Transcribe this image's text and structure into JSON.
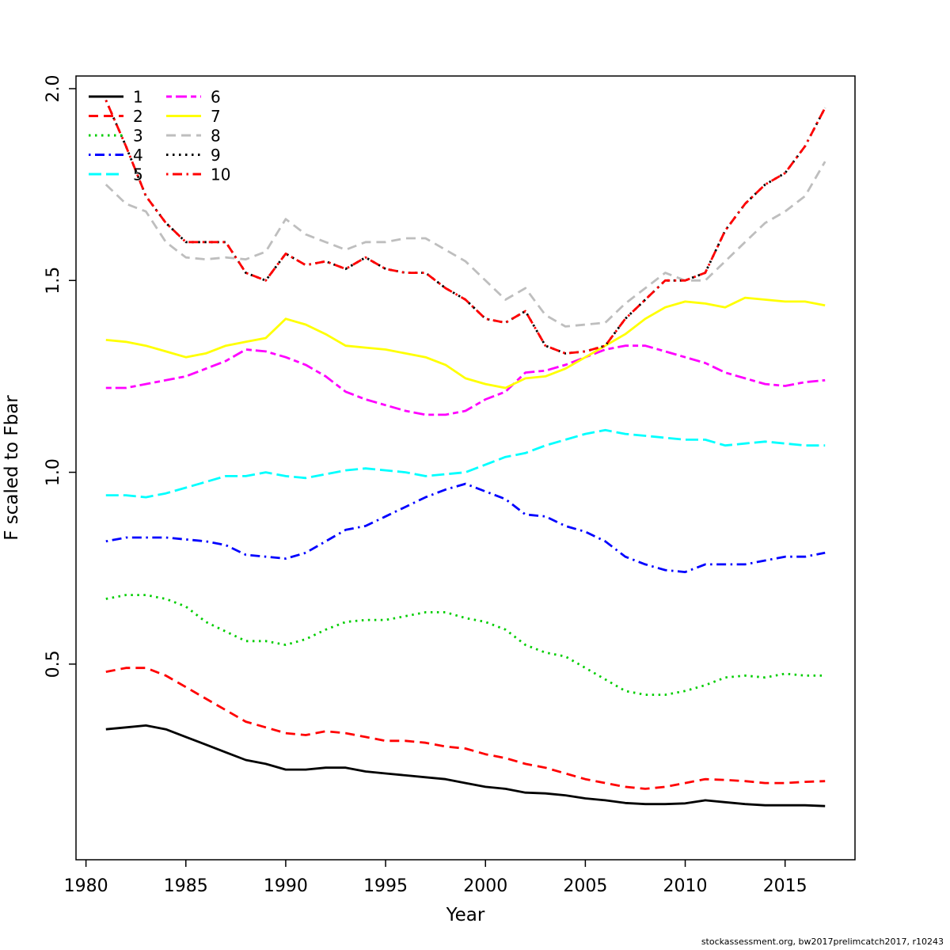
{
  "footer": "stockassessment.org, bw2017prelimcatch2017, r10243",
  "chart_data": {
    "type": "line",
    "title": "",
    "xlabel": "Year",
    "ylabel": "F scaled to Fbar",
    "grid": false,
    "legend_position": "top-left",
    "x_ticks": [
      1980,
      1985,
      1990,
      1995,
      2000,
      2005,
      2010,
      2015
    ],
    "y_ticks": [
      0.5,
      1.0,
      1.5,
      2.0
    ],
    "x_range": [
      1979.5,
      2018.5
    ],
    "y_range": [
      -0.01,
      2.033
    ],
    "x": [
      1981,
      1982,
      1983,
      1984,
      1985,
      1986,
      1987,
      1988,
      1989,
      1990,
      1991,
      1992,
      1993,
      1994,
      1995,
      1996,
      1997,
      1998,
      1999,
      2000,
      2001,
      2002,
      2003,
      2004,
      2005,
      2006,
      2007,
      2008,
      2009,
      2010,
      2011,
      2012,
      2013,
      2014,
      2015,
      2016,
      2017
    ],
    "series": [
      {
        "name": "1",
        "color": "#000000",
        "dash": "solid",
        "values": [
          0.33,
          0.335,
          0.34,
          0.33,
          0.31,
          0.29,
          0.27,
          0.25,
          0.24,
          0.225,
          0.225,
          0.23,
          0.23,
          0.22,
          0.215,
          0.21,
          0.205,
          0.2,
          0.19,
          0.18,
          0.175,
          0.165,
          0.163,
          0.158,
          0.15,
          0.145,
          0.138,
          0.135,
          0.135,
          0.137,
          0.145,
          0.14,
          0.135,
          0.132,
          0.132,
          0.132,
          0.13
        ]
      },
      {
        "name": "2",
        "color": "#FF0000",
        "dash": "dashed",
        "values": [
          0.48,
          0.49,
          0.49,
          0.47,
          0.44,
          0.41,
          0.38,
          0.35,
          0.335,
          0.32,
          0.315,
          0.325,
          0.32,
          0.31,
          0.3,
          0.3,
          0.295,
          0.285,
          0.28,
          0.265,
          0.255,
          0.24,
          0.23,
          0.215,
          0.2,
          0.19,
          0.18,
          0.175,
          0.18,
          0.19,
          0.2,
          0.198,
          0.195,
          0.19,
          0.19,
          0.193,
          0.195
        ]
      },
      {
        "name": "3",
        "color": "#00CD00",
        "dash": "dotted",
        "values": [
          0.67,
          0.68,
          0.68,
          0.67,
          0.65,
          0.61,
          0.585,
          0.56,
          0.56,
          0.55,
          0.565,
          0.59,
          0.61,
          0.615,
          0.615,
          0.625,
          0.635,
          0.635,
          0.62,
          0.61,
          0.59,
          0.55,
          0.53,
          0.52,
          0.49,
          0.46,
          0.43,
          0.42,
          0.42,
          0.43,
          0.445,
          0.465,
          0.47,
          0.465,
          0.475,
          0.47,
          0.47
        ]
      },
      {
        "name": "4",
        "color": "#0000FF",
        "dash": "dotdash",
        "values": [
          0.82,
          0.83,
          0.83,
          0.83,
          0.825,
          0.82,
          0.81,
          0.785,
          0.78,
          0.775,
          0.79,
          0.82,
          0.85,
          0.86,
          0.885,
          0.91,
          0.935,
          0.955,
          0.97,
          0.95,
          0.93,
          0.89,
          0.885,
          0.86,
          0.845,
          0.82,
          0.78,
          0.76,
          0.745,
          0.74,
          0.76,
          0.76,
          0.76,
          0.77,
          0.78,
          0.78,
          0.79
        ]
      },
      {
        "name": "5",
        "color": "#00FFFF",
        "dash": "longdash",
        "values": [
          0.94,
          0.94,
          0.935,
          0.945,
          0.96,
          0.975,
          0.99,
          0.99,
          1.0,
          0.99,
          0.985,
          0.995,
          1.005,
          1.01,
          1.005,
          1.0,
          0.99,
          0.995,
          1.0,
          1.02,
          1.04,
          1.05,
          1.07,
          1.085,
          1.1,
          1.11,
          1.1,
          1.095,
          1.09,
          1.085,
          1.085,
          1.07,
          1.075,
          1.08,
          1.075,
          1.07,
          1.07
        ]
      },
      {
        "name": "6",
        "color": "#FF00FF",
        "dash": "twodash",
        "values": [
          1.22,
          1.22,
          1.23,
          1.24,
          1.25,
          1.27,
          1.29,
          1.32,
          1.315,
          1.3,
          1.28,
          1.25,
          1.21,
          1.19,
          1.175,
          1.16,
          1.15,
          1.15,
          1.16,
          1.19,
          1.21,
          1.26,
          1.265,
          1.28,
          1.3,
          1.32,
          1.33,
          1.33,
          1.315,
          1.3,
          1.285,
          1.26,
          1.245,
          1.23,
          1.225,
          1.235,
          1.24
        ]
      },
      {
        "name": "7",
        "color": "#FFFF00",
        "dash": "solid",
        "values": [
          1.345,
          1.34,
          1.33,
          1.315,
          1.3,
          1.31,
          1.33,
          1.34,
          1.35,
          1.4,
          1.385,
          1.36,
          1.33,
          1.325,
          1.32,
          1.31,
          1.3,
          1.28,
          1.245,
          1.23,
          1.22,
          1.245,
          1.25,
          1.27,
          1.3,
          1.33,
          1.36,
          1.4,
          1.43,
          1.445,
          1.44,
          1.43,
          1.455,
          1.45,
          1.445,
          1.445,
          1.435
        ]
      },
      {
        "name": "8",
        "color": "#BEBEBE",
        "dash": "dashed",
        "values": [
          1.75,
          1.7,
          1.68,
          1.6,
          1.56,
          1.555,
          1.56,
          1.555,
          1.575,
          1.66,
          1.62,
          1.6,
          1.58,
          1.6,
          1.6,
          1.61,
          1.61,
          1.58,
          1.55,
          1.5,
          1.45,
          1.48,
          1.41,
          1.38,
          1.385,
          1.39,
          1.44,
          1.48,
          1.52,
          1.5,
          1.5,
          1.55,
          1.6,
          1.65,
          1.68,
          1.72,
          1.81
        ]
      },
      {
        "name": "9",
        "color": "#000000",
        "dash": "dotted",
        "values": [
          1.97,
          1.85,
          1.72,
          1.65,
          1.6,
          1.6,
          1.6,
          1.52,
          1.5,
          1.57,
          1.54,
          1.55,
          1.53,
          1.56,
          1.53,
          1.52,
          1.52,
          1.48,
          1.45,
          1.4,
          1.39,
          1.42,
          1.33,
          1.31,
          1.315,
          1.33,
          1.4,
          1.45,
          1.5,
          1.5,
          1.52,
          1.63,
          1.7,
          1.75,
          1.78,
          1.85,
          1.95
        ]
      },
      {
        "name": "10",
        "color": "#FF0000",
        "dash": "dotdash",
        "values": [
          1.97,
          1.85,
          1.72,
          1.65,
          1.6,
          1.6,
          1.6,
          1.52,
          1.5,
          1.57,
          1.54,
          1.55,
          1.53,
          1.56,
          1.53,
          1.52,
          1.52,
          1.48,
          1.45,
          1.4,
          1.39,
          1.42,
          1.33,
          1.31,
          1.315,
          1.33,
          1.4,
          1.45,
          1.5,
          1.5,
          1.52,
          1.63,
          1.7,
          1.75,
          1.78,
          1.85,
          1.95
        ]
      }
    ]
  }
}
